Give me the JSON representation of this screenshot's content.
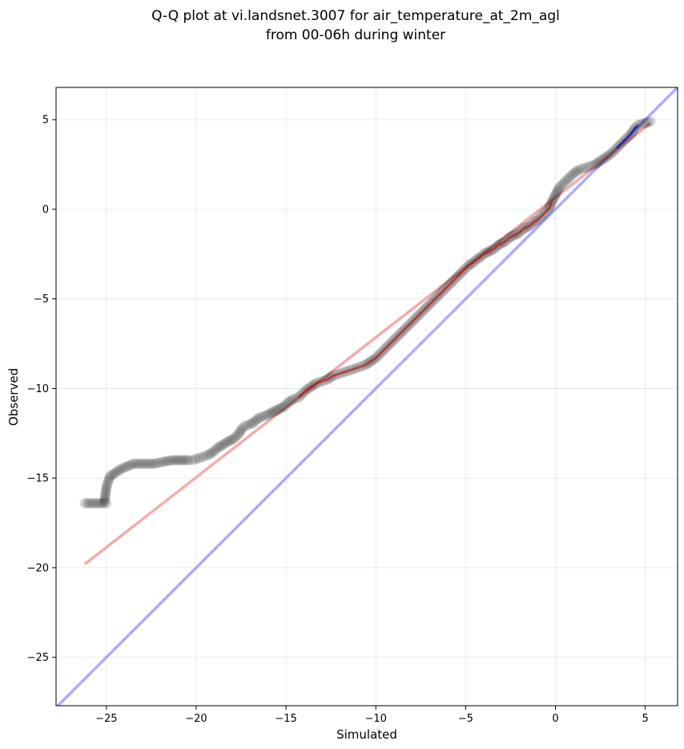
{
  "chart_data": {
    "type": "scatter",
    "title_line1": "Q-Q plot at vi.landsnet.3007 for air_temperature_at_2m_agl",
    "title_line2": "from 00-06h during winter",
    "xlabel": "Simulated",
    "ylabel": "Observed",
    "xlim": [
      -27.8,
      6.8
    ],
    "ylim": [
      -27.7,
      6.8
    ],
    "xticks": [
      -25,
      -20,
      -15,
      -10,
      -5,
      0,
      5
    ],
    "yticks": [
      -25,
      -20,
      -15,
      -10,
      -5,
      0,
      5
    ],
    "xtick_labels": [
      "−25",
      "−20",
      "−15",
      "−10",
      "−5",
      "0",
      "5"
    ],
    "ytick_labels": [
      "−25",
      "−20",
      "−15",
      "−10",
      "−5",
      "0",
      "5"
    ],
    "grid": true,
    "colors": {
      "points": "#000000",
      "fit_line": "#f08080",
      "identity_line": "#8080ff",
      "overlay_red": "#cc0000",
      "overlay_blue": "#0000cc"
    },
    "series": [
      {
        "values": [
          [
            -26.2,
            -16.4
          ],
          [
            -25.0,
            -16.4
          ],
          [
            -25.1,
            -16.3
          ],
          [
            -25.0,
            -15.5
          ],
          [
            -24.8,
            -14.9
          ],
          [
            -24.5,
            -14.7
          ],
          [
            -24.2,
            -14.5
          ],
          [
            -23.5,
            -14.2
          ],
          [
            -22.3,
            -14.2
          ],
          [
            -21.9,
            -14.1
          ],
          [
            -21.3,
            -14.0
          ],
          [
            -20.4,
            -14.0
          ],
          [
            -20.2,
            -14.0
          ],
          [
            -19.9,
            -13.9
          ],
          [
            -19.6,
            -13.8
          ],
          [
            -19.3,
            -13.7
          ],
          [
            -19.0,
            -13.5
          ],
          [
            -18.8,
            -13.3
          ],
          [
            -18.6,
            -13.2
          ],
          [
            -18.3,
            -13.0
          ],
          [
            -18.1,
            -12.9
          ],
          [
            -17.9,
            -12.8
          ],
          [
            -17.6,
            -12.5
          ],
          [
            -17.5,
            -12.3
          ],
          [
            -17.3,
            -12.1
          ],
          [
            -17.0,
            -12.0
          ],
          [
            -16.8,
            -11.9
          ],
          [
            -16.6,
            -11.7
          ],
          [
            -16.4,
            -11.6
          ],
          [
            -16.1,
            -11.5
          ],
          [
            -15.9,
            -11.4
          ],
          [
            -15.7,
            -11.3
          ],
          [
            -15.5,
            -11.2
          ],
          [
            -15.3,
            -11.1
          ],
          [
            -15.1,
            -11.0
          ],
          [
            -14.9,
            -10.8
          ],
          [
            -14.6,
            -10.6
          ],
          [
            -14.3,
            -10.5
          ],
          [
            -14.1,
            -10.3
          ],
          [
            -13.9,
            -10.1
          ],
          [
            -13.6,
            -9.9
          ],
          [
            -13.3,
            -9.7
          ],
          [
            -13.0,
            -9.6
          ],
          [
            -12.7,
            -9.5
          ],
          [
            -12.4,
            -9.3
          ],
          [
            -12.1,
            -9.2
          ],
          [
            -11.8,
            -9.1
          ],
          [
            -11.5,
            -9.0
          ],
          [
            -11.2,
            -8.9
          ],
          [
            -10.9,
            -8.8
          ],
          [
            -10.6,
            -8.7
          ],
          [
            -10.3,
            -8.5
          ],
          [
            -10.0,
            -8.3
          ],
          [
            -9.8,
            -8.1
          ],
          [
            -9.6,
            -7.9
          ],
          [
            -9.4,
            -7.7
          ],
          [
            -9.2,
            -7.5
          ],
          [
            -9.0,
            -7.3
          ],
          [
            -8.8,
            -7.1
          ],
          [
            -8.6,
            -6.9
          ],
          [
            -8.4,
            -6.7
          ],
          [
            -8.2,
            -6.5
          ],
          [
            -8.0,
            -6.3
          ],
          [
            -7.8,
            -6.1
          ],
          [
            -7.6,
            -5.9
          ],
          [
            -7.4,
            -5.7
          ],
          [
            -7.2,
            -5.5
          ],
          [
            -7.0,
            -5.3
          ],
          [
            -6.8,
            -5.1
          ],
          [
            -6.6,
            -4.9
          ],
          [
            -6.4,
            -4.7
          ],
          [
            -6.2,
            -4.5
          ],
          [
            -6.0,
            -4.3
          ],
          [
            -5.8,
            -4.1
          ],
          [
            -5.6,
            -3.9
          ],
          [
            -5.4,
            -3.7
          ],
          [
            -5.2,
            -3.5
          ],
          [
            -5.0,
            -3.3
          ],
          [
            -4.8,
            -3.1
          ],
          [
            -4.6,
            -3.0
          ],
          [
            -4.4,
            -2.8
          ],
          [
            -4.2,
            -2.7
          ],
          [
            -4.0,
            -2.5
          ],
          [
            -3.8,
            -2.4
          ],
          [
            -3.6,
            -2.3
          ],
          [
            -3.4,
            -2.2
          ],
          [
            -3.2,
            -2.0
          ],
          [
            -3.0,
            -1.9
          ],
          [
            -2.8,
            -1.8
          ],
          [
            -2.6,
            -1.6
          ],
          [
            -2.4,
            -1.5
          ],
          [
            -2.2,
            -1.4
          ],
          [
            -2.0,
            -1.3
          ],
          [
            -1.8,
            -1.1
          ],
          [
            -1.6,
            -1.0
          ],
          [
            -1.4,
            -0.9
          ],
          [
            -1.2,
            -0.7
          ],
          [
            -1.0,
            -0.6
          ],
          [
            -0.8,
            -0.4
          ],
          [
            -0.6,
            -0.2
          ],
          [
            -0.4,
            0.0
          ],
          [
            -0.3,
            0.2
          ],
          [
            -0.2,
            0.4
          ],
          [
            -0.1,
            0.6
          ],
          [
            0.0,
            0.8
          ],
          [
            0.1,
            1.0
          ],
          [
            0.2,
            1.2
          ],
          [
            0.4,
            1.4
          ],
          [
            0.6,
            1.6
          ],
          [
            0.8,
            1.8
          ],
          [
            1.0,
            2.0
          ],
          [
            1.3,
            2.2
          ],
          [
            1.6,
            2.3
          ],
          [
            1.9,
            2.4
          ],
          [
            2.2,
            2.5
          ],
          [
            2.5,
            2.7
          ],
          [
            2.8,
            2.9
          ],
          [
            3.1,
            3.1
          ],
          [
            3.4,
            3.4
          ],
          [
            3.6,
            3.6
          ],
          [
            3.8,
            3.8
          ],
          [
            4.0,
            4.0
          ],
          [
            4.2,
            4.2
          ],
          [
            4.4,
            4.5
          ],
          [
            4.6,
            4.7
          ],
          [
            4.9,
            4.8
          ],
          [
            5.3,
            4.9
          ]
        ]
      }
    ],
    "fit_line": {
      "x": [
        -26.2,
        5.3
      ],
      "y": [
        -19.8,
        4.8
      ]
    },
    "identity_line": {
      "x": [
        -27.8,
        6.8
      ],
      "y": [
        -27.8,
        6.8
      ]
    }
  }
}
